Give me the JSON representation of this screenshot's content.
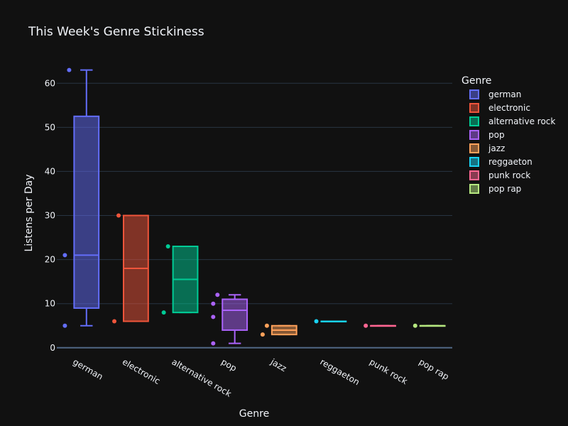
{
  "chart_data": {
    "type": "box",
    "title": "This Week's Genre Stickiness",
    "xlabel": "Genre",
    "ylabel": "Listens per Day",
    "ylim": [
      -1,
      66
    ],
    "yticks": [
      0,
      10,
      20,
      30,
      40,
      50,
      60
    ],
    "grid": true,
    "legend_title": "Genre",
    "legend_position": "top-right",
    "categories": [
      "german",
      "electronic",
      "alternative rock",
      "pop",
      "jazz",
      "reggaeton",
      "punk rock",
      "pop rap"
    ],
    "series": [
      {
        "name": "german",
        "color": "#636efa",
        "q1": 9,
        "median": 21,
        "q3": 52.5,
        "whisker_low": 5,
        "whisker_high": 63,
        "points": [
          63,
          21,
          5
        ]
      },
      {
        "name": "electronic",
        "color": "#ef553b",
        "q1": 6,
        "median": 18,
        "q3": 30,
        "whisker_low": 6,
        "whisker_high": 30,
        "points": [
          30,
          6
        ]
      },
      {
        "name": "alternative rock",
        "color": "#00cc96",
        "q1": 8,
        "median": 15.5,
        "q3": 23,
        "whisker_low": 8,
        "whisker_high": 23,
        "points": [
          23,
          8
        ]
      },
      {
        "name": "pop",
        "color": "#ab63fa",
        "q1": 4,
        "median": 8.5,
        "q3": 11,
        "whisker_low": 1,
        "whisker_high": 12,
        "points": [
          12,
          10,
          7,
          1
        ]
      },
      {
        "name": "jazz",
        "color": "#ffa15a",
        "q1": 3,
        "median": 4,
        "q3": 5,
        "whisker_low": 3,
        "whisker_high": 5,
        "points": [
          5,
          3
        ]
      },
      {
        "name": "reggaeton",
        "color": "#19d3f3",
        "q1": 6,
        "median": 6,
        "q3": 6,
        "whisker_low": 6,
        "whisker_high": 6,
        "points": [
          6
        ]
      },
      {
        "name": "punk rock",
        "color": "#ff6692",
        "q1": 5,
        "median": 5,
        "q3": 5,
        "whisker_low": 5,
        "whisker_high": 5,
        "points": [
          5
        ]
      },
      {
        "name": "pop rap",
        "color": "#b6e880",
        "q1": 5,
        "median": 5,
        "q3": 5,
        "whisker_low": 5,
        "whisker_high": 5,
        "points": [
          5
        ]
      }
    ]
  }
}
